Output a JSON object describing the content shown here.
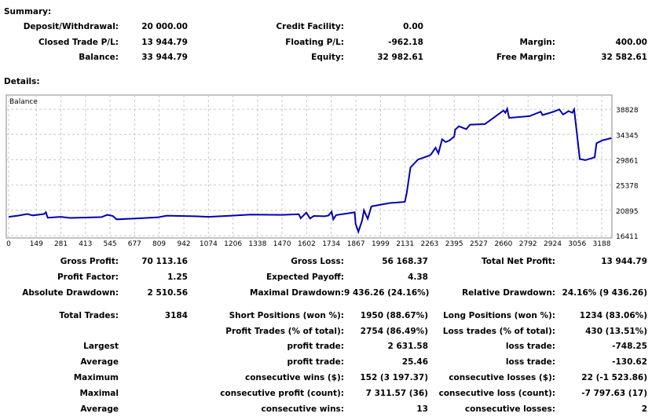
{
  "summary": {
    "title": "Summary:",
    "rows": [
      [
        [
          "Deposit/Withdrawal:",
          "20 000.00"
        ],
        [
          "Credit Facility:",
          "0.00"
        ],
        [
          "",
          ""
        ]
      ],
      [
        [
          "Closed Trade P/L:",
          "13 944.79"
        ],
        [
          "Floating P/L:",
          "-962.18"
        ],
        [
          "Margin:",
          "400.00"
        ]
      ],
      [
        [
          "Balance:",
          "33 944.79"
        ],
        [
          "Equity:",
          "32 982.61"
        ],
        [
          "Free Margin:",
          "32 582.61"
        ]
      ]
    ]
  },
  "details": {
    "title": "Details:",
    "rows": [
      [
        [
          "Gross Profit:",
          "70 113.16"
        ],
        [
          "Gross Loss:",
          "56 168.37"
        ],
        [
          "Total Net Profit:",
          "13 944.79"
        ]
      ],
      [
        [
          "Profit Factor:",
          "1.25"
        ],
        [
          "Expected Payoff:",
          "4.38"
        ],
        [
          "",
          ""
        ]
      ],
      [
        [
          "Absolute Drawdown:",
          "2 510.56"
        ],
        [
          "Maximal Drawdown:",
          "9 436.26 (24.16%)"
        ],
        [
          "Relative Drawdown:",
          "24.16% (9 436.26)"
        ]
      ],
      [
        [
          "Total Trades:",
          "3184"
        ],
        [
          "Short Positions (won %):",
          "1950 (88.67%)"
        ],
        [
          "Long Positions (won %):",
          "1234 (83.06%)"
        ]
      ],
      [
        [
          "",
          ""
        ],
        [
          "Profit Trades (% of total):",
          "2754 (86.49%)"
        ],
        [
          "Loss trades (% of total):",
          "430 (13.51%)"
        ]
      ],
      [
        [
          "Largest",
          ""
        ],
        [
          "profit trade:",
          "2 631.58"
        ],
        [
          "loss trade:",
          "-748.25"
        ]
      ],
      [
        [
          "Average",
          ""
        ],
        [
          "profit trade:",
          "25.46"
        ],
        [
          "loss trade:",
          "-130.62"
        ]
      ],
      [
        [
          "Maximum",
          ""
        ],
        [
          "consecutive wins ($):",
          "152 (3 197.37)"
        ],
        [
          "consecutive losses ($):",
          "22 (-1 523.86)"
        ]
      ],
      [
        [
          "Maximal",
          ""
        ],
        [
          "consecutive profit (count):",
          "7 311.57 (36)"
        ],
        [
          "consecutive loss (count):",
          "-7 797.63 (17)"
        ]
      ],
      [
        [
          "Average",
          ""
        ],
        [
          "consecutive wins:",
          "13"
        ],
        [
          "consecutive losses:",
          "2"
        ]
      ]
    ]
  },
  "chart_data": {
    "type": "line",
    "title": "Balance",
    "line_color": "#0000b4",
    "x_ticks": [
      0,
      149,
      281,
      413,
      545,
      677,
      809,
      942,
      1074,
      1206,
      1338,
      1470,
      1602,
      1734,
      1867,
      1999,
      2131,
      2263,
      2395,
      2527,
      2660,
      2792,
      2924,
      3056,
      3188
    ],
    "y_ticks": [
      16411,
      20895,
      25378,
      29861,
      34345,
      38828
    ],
    "xlim": [
      0,
      3243
    ],
    "ylim": [
      16000,
      41350
    ],
    "grid": true,
    "series": [
      {
        "name": "Balance",
        "points": [
          [
            0,
            19750
          ],
          [
            50,
            19950
          ],
          [
            100,
            20250
          ],
          [
            130,
            20000
          ],
          [
            190,
            20250
          ],
          [
            200,
            20550
          ],
          [
            210,
            19600
          ],
          [
            280,
            19750
          ],
          [
            330,
            19550
          ],
          [
            500,
            19700
          ],
          [
            530,
            20100
          ],
          [
            560,
            19900
          ],
          [
            580,
            19300
          ],
          [
            680,
            19450
          ],
          [
            800,
            19650
          ],
          [
            850,
            19950
          ],
          [
            1000,
            19850
          ],
          [
            1074,
            19750
          ],
          [
            1200,
            19950
          ],
          [
            1300,
            20150
          ],
          [
            1470,
            20100
          ],
          [
            1560,
            20200
          ],
          [
            1570,
            19500
          ],
          [
            1600,
            20500
          ],
          [
            1620,
            19450
          ],
          [
            1640,
            19900
          ],
          [
            1700,
            19850
          ],
          [
            1720,
            20000
          ],
          [
            1736,
            20650
          ],
          [
            1745,
            19300
          ],
          [
            1760,
            20050
          ],
          [
            1850,
            20500
          ],
          [
            1860,
            20550
          ],
          [
            1865,
            18500
          ],
          [
            1880,
            17100
          ],
          [
            1900,
            19100
          ],
          [
            1910,
            20900
          ],
          [
            1930,
            19400
          ],
          [
            1950,
            21600
          ],
          [
            2000,
            21900
          ],
          [
            2050,
            22200
          ],
          [
            2130,
            22400
          ],
          [
            2140,
            24000
          ],
          [
            2160,
            28500
          ],
          [
            2200,
            29900
          ],
          [
            2260,
            30600
          ],
          [
            2270,
            30800
          ],
          [
            2295,
            32000
          ],
          [
            2310,
            31000
          ],
          [
            2330,
            33500
          ],
          [
            2350,
            33000
          ],
          [
            2370,
            33300
          ],
          [
            2395,
            34000
          ],
          [
            2400,
            35200
          ],
          [
            2420,
            35800
          ],
          [
            2460,
            35300
          ],
          [
            2480,
            36100
          ],
          [
            2560,
            36200
          ],
          [
            2660,
            38600
          ],
          [
            2670,
            38200
          ],
          [
            2680,
            38900
          ],
          [
            2690,
            37300
          ],
          [
            2800,
            37600
          ],
          [
            2860,
            38400
          ],
          [
            2870,
            37800
          ],
          [
            2930,
            38400
          ],
          [
            2960,
            38800
          ],
          [
            2980,
            37900
          ],
          [
            3010,
            38500
          ],
          [
            3030,
            38200
          ],
          [
            3040,
            38800
          ],
          [
            3070,
            30000
          ],
          [
            3100,
            29800
          ],
          [
            3150,
            30300
          ],
          [
            3160,
            32800
          ],
          [
            3190,
            33300
          ],
          [
            3240,
            33700
          ]
        ]
      }
    ]
  }
}
